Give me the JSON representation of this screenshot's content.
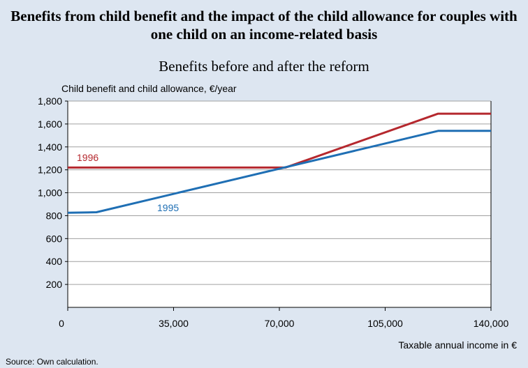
{
  "chart_data": {
    "type": "line",
    "title": "Benefits from child benefit and the impact of the child allowance for couples with one child on an income-related basis",
    "subtitle": "Benefits before and after the reform",
    "ylabel": "Child benefit and child allowance, €/year",
    "xlabel": "Taxable annual income in €",
    "source": "Source: Own calculation.",
    "xlim": [
      0,
      140000
    ],
    "ylim": [
      0,
      1800
    ],
    "xticks": [
      0,
      35000,
      70000,
      105000,
      140000
    ],
    "xtick_labels": [
      "0",
      "35,000",
      "70,000",
      "105,000",
      "140,000"
    ],
    "yticks": [
      200,
      400,
      600,
      800,
      1000,
      1200,
      1400,
      1600,
      1800
    ],
    "ytick_labels": [
      "200",
      "400",
      "600",
      "800",
      "1,000",
      "1,200",
      "1,400",
      "1,600",
      "1,800"
    ],
    "grid": true,
    "series": [
      {
        "name": "1996",
        "color": "#b5282e",
        "x": [
          0,
          72000,
          122500,
          140000
        ],
        "y": [
          1220,
          1220,
          1690,
          1690
        ]
      },
      {
        "name": "1995",
        "color": "#1f6fb4",
        "x": [
          0,
          9500,
          122500,
          140000
        ],
        "y": [
          825,
          830,
          1540,
          1540
        ]
      }
    ]
  }
}
